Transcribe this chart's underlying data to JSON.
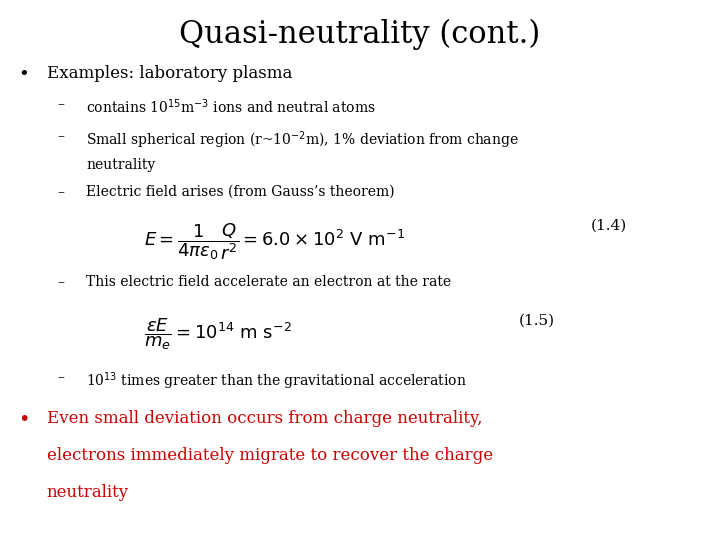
{
  "title": "Quasi-neutrality (cont.)",
  "title_fontsize": 22,
  "bg_color": "#ffffff",
  "text_color": "#000000",
  "red_color": "#cc0000",
  "bullet1": "Examples: laboratory plasma",
  "sub1": "contains 10$^{15}$m$^{-3}$ ions and neutral atoms",
  "sub2a": "Small spherical region (r~10$^{-2}$m), 1% deviation from change",
  "sub2b": "neutrality",
  "sub3": "Electric field arises (from Gauss’s theorem)",
  "eq1": "$E = \\dfrac{1}{4\\pi\\epsilon_0} \\dfrac{Q}{r^2} = 6.0 \\times 10^2\\ \\mathrm{V\\ m^{-1}}$",
  "eq1_label": "(1.4)",
  "sub4": "This electric field accelerate an electron at the rate",
  "eq2": "$\\dfrac{\\epsilon E}{m_e} = 10^{14}\\ \\mathrm{m\\ s^{-2}}$",
  "eq2_label": "(1.5)",
  "sub5": "10$^{13}$ times greater than the gravitational acceleration",
  "bullet2_line1": "Even small deviation occurs from charge neutrality,",
  "bullet2_line2": "electrons immediately migrate to recover the charge",
  "bullet2_line3": "neutrality",
  "body_fontsize": 11,
  "sub_fontsize": 10,
  "eq_fontsize": 11,
  "red_fontsize": 12
}
